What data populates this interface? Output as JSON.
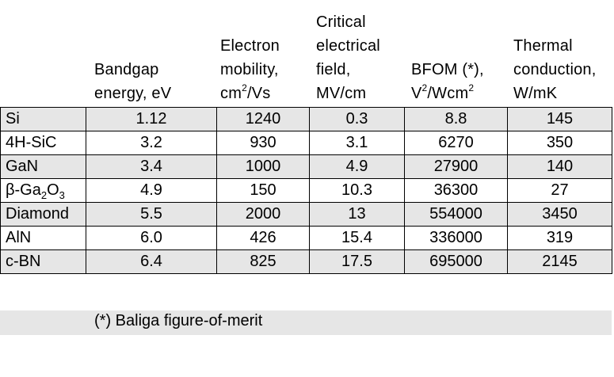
{
  "headers": {
    "bandgap": [
      "Bandgap",
      "energy, eV"
    ],
    "mobility": [
      "Electron",
      "mobility,",
      "cm",
      "2",
      "/Vs"
    ],
    "critical": [
      "Critical",
      "electrical",
      "field,",
      "MV/cm"
    ],
    "bfom": [
      "BFOM (*),",
      "V",
      "2",
      "/Wcm",
      "2"
    ],
    "thermal": [
      "Thermal",
      "conduction,",
      "W/mK"
    ]
  },
  "rows": [
    {
      "material": "Si",
      "bandgap": "1.12",
      "mobility": "1240",
      "field": "0.3",
      "bfom": "8.8",
      "thermal": "145"
    },
    {
      "material": "4H-SiC",
      "bandgap": "3.2",
      "mobility": "930",
      "field": "3.1",
      "bfom": "6270",
      "thermal": "350"
    },
    {
      "material": "GaN",
      "bandgap": "3.4",
      "mobility": "1000",
      "field": "4.9",
      "bfom": "27900",
      "thermal": "140"
    },
    {
      "material": "β-Ga₂O₃",
      "material_parts": [
        "β-Ga",
        "2",
        "O",
        "3"
      ],
      "bandgap": "4.9",
      "mobility": "150",
      "field": "10.3",
      "bfom": "36300",
      "thermal": "27"
    },
    {
      "material": "Diamond",
      "bandgap": "5.5",
      "mobility": "2000",
      "field": "13",
      "bfom": "554000",
      "thermal": "3450"
    },
    {
      "material": "AlN",
      "bandgap": "6.0",
      "mobility": "426",
      "field": "15.4",
      "bfom": "336000",
      "thermal": "319"
    },
    {
      "material": "c-BN",
      "bandgap": "6.4",
      "mobility": "825",
      "field": "17.5",
      "bfom": "695000",
      "thermal": "2145"
    }
  ],
  "footnote": "(*) Baliga figure-of-merit",
  "colors": {
    "shade": "#e6e6e6",
    "border": "#000000"
  }
}
